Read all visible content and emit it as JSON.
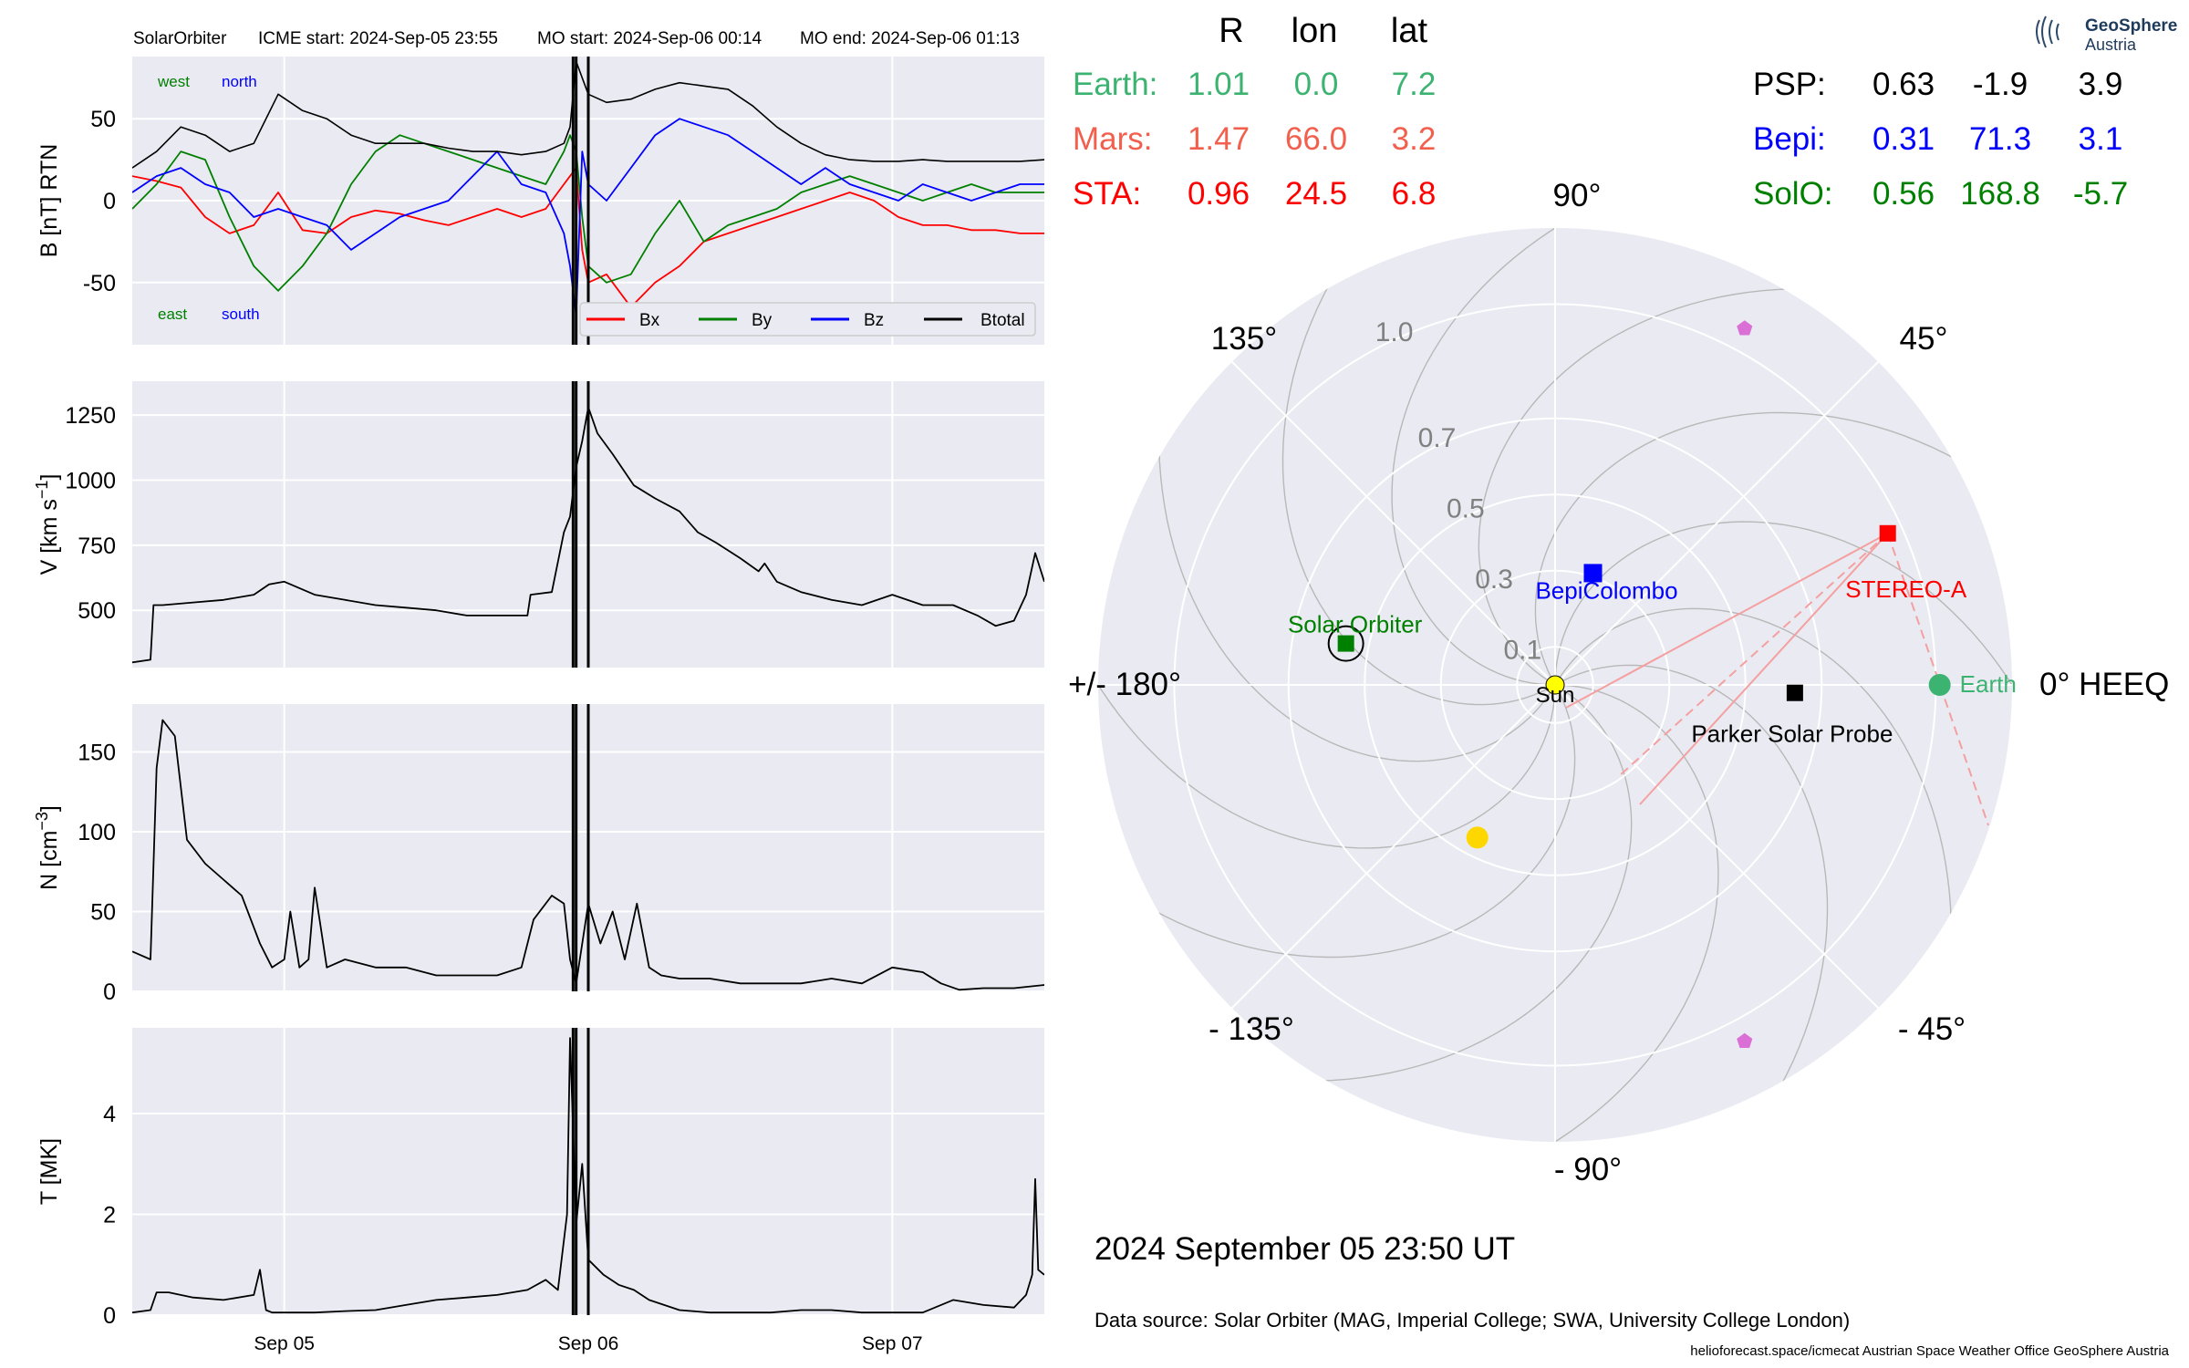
{
  "colors": {
    "panel_bg": "#eaeaf2",
    "grid": "#ffffff",
    "bx": "#ff0000",
    "by": "#008000",
    "bz": "#0000ff",
    "btotal": "#000000",
    "earth": "#3cb371",
    "mars": "#f25f4c",
    "stereo": "#ff0000",
    "bepi": "#0000ff",
    "solo": "#008000",
    "sun": "#ffff00",
    "planet_yellow": "#ffd700",
    "pentagon": "#da70d6"
  },
  "header": {
    "spacecraft": "SolarOrbiter",
    "icme_start": "ICME start: 2024-Sep-05 23:55",
    "mo_start": "MO start: 2024-Sep-06 00:14",
    "mo_end": "MO end: 2024-Sep-06 01:13"
  },
  "position_table": {
    "columns": [
      "R",
      "lon",
      "lat"
    ],
    "left_rows": [
      {
        "name": "Earth:",
        "r": "1.01",
        "lon": "0.0",
        "lat": "7.2",
        "color": "#3cb371"
      },
      {
        "name": "Mars:",
        "r": "1.47",
        "lon": "66.0",
        "lat": "3.2",
        "color": "#f25f4c"
      },
      {
        "name": "STA:",
        "r": "0.96",
        "lon": "24.5",
        "lat": "6.8",
        "color": "#ff0000"
      }
    ],
    "right_rows": [
      {
        "name": "PSP:",
        "r": "0.63",
        "lon": "-1.9",
        "lat": "3.9",
        "color": "#000000"
      },
      {
        "name": "Bepi:",
        "r": "0.31",
        "lon": "71.3",
        "lat": "3.1",
        "color": "#0000ff"
      },
      {
        "name": "SolO:",
        "r": "0.56",
        "lon": "168.8",
        "lat": "-5.7",
        "color": "#008000"
      }
    ]
  },
  "logo": {
    "line1": "GeoSphere",
    "line2": "Austria"
  },
  "timestamp": "2024 September 05  23:50 UT",
  "data_source": "Data source: Solar Orbiter (MAG, Imperial College; SWA, University College London)",
  "credits": "helioforecast.space/icmecat   Austrian Space Weather Office   GeoSphere Austria",
  "chart_data": [
    {
      "type": "line",
      "id": "magnetic-field",
      "ylabel": "B [nT] RTN",
      "ylim": [
        -88,
        88
      ],
      "yticks": [
        -50,
        0,
        50
      ],
      "xlim": [
        0,
        3
      ],
      "x_ticks": [
        {
          "x": 0.5,
          "label": "Sep 05"
        },
        {
          "x": 1.5,
          "label": "Sep 06"
        },
        {
          "x": 2.5,
          "label": "Sep 07"
        }
      ],
      "event_lines": [
        1.45,
        1.46,
        1.5
      ],
      "annotations": {
        "top_left": "west",
        "top_right": "north",
        "bottom_left": "east",
        "bottom_right": "south"
      },
      "legend_placement": "lower-right",
      "x": [
        0.0,
        0.08,
        0.16,
        0.24,
        0.32,
        0.4,
        0.48,
        0.56,
        0.64,
        0.72,
        0.8,
        0.88,
        0.96,
        1.04,
        1.12,
        1.2,
        1.28,
        1.36,
        1.42,
        1.44,
        1.46,
        1.48,
        1.5,
        1.56,
        1.64,
        1.72,
        1.8,
        1.88,
        1.96,
        2.04,
        2.12,
        2.2,
        2.28,
        2.36,
        2.44,
        2.52,
        2.6,
        2.68,
        2.76,
        2.84,
        2.92,
        3.0
      ],
      "series": [
        {
          "name": "Bx",
          "values": [
            15,
            12,
            8,
            -10,
            -20,
            -15,
            5,
            -18,
            -20,
            -10,
            -6,
            -8,
            -12,
            -15,
            -10,
            -5,
            -10,
            -5,
            10,
            15,
            20,
            -30,
            -50,
            -45,
            -65,
            -50,
            -40,
            -25,
            -20,
            -15,
            -10,
            -5,
            0,
            5,
            0,
            -10,
            -15,
            -15,
            -18,
            -18,
            -20,
            -20
          ]
        },
        {
          "name": "By",
          "values": [
            -5,
            10,
            30,
            25,
            -10,
            -40,
            -55,
            -40,
            -20,
            10,
            30,
            40,
            35,
            30,
            25,
            20,
            15,
            10,
            30,
            40,
            30,
            -10,
            -40,
            -50,
            -45,
            -20,
            0,
            -25,
            -15,
            -10,
            -5,
            5,
            10,
            15,
            10,
            5,
            0,
            5,
            10,
            5,
            5,
            5
          ]
        },
        {
          "name": "Bz",
          "values": [
            5,
            15,
            20,
            10,
            5,
            -10,
            -5,
            -10,
            -15,
            -30,
            -20,
            -10,
            -5,
            0,
            15,
            30,
            10,
            5,
            -20,
            -40,
            -70,
            30,
            10,
            0,
            20,
            40,
            50,
            45,
            40,
            30,
            20,
            10,
            20,
            10,
            5,
            0,
            10,
            5,
            0,
            5,
            10,
            10
          ]
        },
        {
          "name": "Btotal",
          "values": [
            20,
            30,
            45,
            40,
            30,
            35,
            65,
            55,
            50,
            40,
            35,
            35,
            35,
            32,
            30,
            30,
            28,
            30,
            35,
            45,
            85,
            75,
            65,
            60,
            62,
            68,
            72,
            70,
            68,
            58,
            45,
            35,
            28,
            25,
            24,
            24,
            25,
            24,
            24,
            24,
            24,
            25
          ]
        }
      ]
    },
    {
      "type": "line",
      "id": "speed",
      "ylabel": "V [km s",
      "ylabel_exp": "−1",
      "ylabel_tail": "]",
      "ylim": [
        280,
        1380
      ],
      "yticks": [
        500,
        750,
        1000,
        1250
      ],
      "xlim": [
        0,
        3
      ],
      "event_lines": [
        1.45,
        1.46,
        1.5
      ],
      "series": [
        {
          "name": "V",
          "x": [
            0.0,
            0.06,
            0.07,
            0.1,
            0.2,
            0.3,
            0.4,
            0.45,
            0.5,
            0.6,
            0.7,
            0.8,
            0.9,
            1.0,
            1.1,
            1.2,
            1.3,
            1.31,
            1.38,
            1.42,
            1.44,
            1.46,
            1.48,
            1.5,
            1.53,
            1.58,
            1.65,
            1.72,
            1.8,
            1.86,
            1.92,
            2.0,
            2.06,
            2.08,
            2.12,
            2.2,
            2.3,
            2.4,
            2.5,
            2.6,
            2.7,
            2.78,
            2.84,
            2.9,
            2.94,
            2.97,
            3.0
          ],
          "values": [
            300,
            310,
            520,
            520,
            530,
            540,
            560,
            600,
            610,
            560,
            540,
            520,
            510,
            500,
            480,
            480,
            480,
            560,
            570,
            800,
            860,
            1050,
            1150,
            1280,
            1180,
            1100,
            980,
            930,
            880,
            800,
            760,
            700,
            650,
            680,
            610,
            570,
            540,
            520,
            560,
            520,
            520,
            480,
            440,
            460,
            560,
            720,
            610
          ]
        }
      ]
    },
    {
      "type": "line",
      "id": "density",
      "ylabel": "N [cm",
      "ylabel_exp": "−3",
      "ylabel_tail": "]",
      "ylim": [
        0,
        180
      ],
      "yticks": [
        0,
        50,
        100,
        150
      ],
      "xlim": [
        0,
        3
      ],
      "event_lines": [
        1.45,
        1.46,
        1.5
      ],
      "series": [
        {
          "name": "N",
          "x": [
            0.0,
            0.06,
            0.08,
            0.1,
            0.14,
            0.18,
            0.24,
            0.3,
            0.36,
            0.42,
            0.46,
            0.5,
            0.52,
            0.55,
            0.58,
            0.6,
            0.62,
            0.64,
            0.7,
            0.8,
            0.9,
            1.0,
            1.1,
            1.2,
            1.28,
            1.32,
            1.38,
            1.42,
            1.44,
            1.46,
            1.5,
            1.54,
            1.58,
            1.62,
            1.66,
            1.7,
            1.74,
            1.8,
            1.9,
            2.0,
            2.1,
            2.2,
            2.3,
            2.4,
            2.5,
            2.6,
            2.66,
            2.72,
            2.8,
            2.9,
            3.0
          ],
          "values": [
            25,
            20,
            140,
            170,
            160,
            95,
            80,
            70,
            60,
            30,
            15,
            20,
            50,
            15,
            20,
            65,
            40,
            15,
            20,
            15,
            15,
            10,
            10,
            10,
            15,
            45,
            60,
            55,
            20,
            5,
            55,
            30,
            50,
            20,
            55,
            15,
            10,
            8,
            8,
            5,
            5,
            5,
            8,
            5,
            15,
            12,
            5,
            1,
            2,
            2,
            4
          ]
        }
      ]
    },
    {
      "type": "line",
      "id": "temperature",
      "ylabel": "T [MK]",
      "ylim": [
        0,
        5.7
      ],
      "yticks": [
        0,
        2,
        4
      ],
      "xlim": [
        0,
        3
      ],
      "event_lines": [
        1.45,
        1.46,
        1.5
      ],
      "series": [
        {
          "name": "T",
          "x": [
            0.0,
            0.06,
            0.08,
            0.12,
            0.2,
            0.3,
            0.4,
            0.42,
            0.44,
            0.46,
            0.5,
            0.6,
            0.7,
            0.8,
            0.9,
            1.0,
            1.1,
            1.2,
            1.3,
            1.36,
            1.4,
            1.43,
            1.44,
            1.46,
            1.48,
            1.5,
            1.55,
            1.6,
            1.65,
            1.7,
            1.8,
            1.9,
            2.0,
            2.1,
            2.2,
            2.3,
            2.4,
            2.5,
            2.6,
            2.7,
            2.8,
            2.9,
            2.94,
            2.96,
            2.97,
            2.98,
            3.0
          ],
          "values": [
            0.05,
            0.1,
            0.45,
            0.45,
            0.35,
            0.3,
            0.4,
            0.9,
            0.1,
            0.05,
            0.05,
            0.05,
            0.08,
            0.1,
            0.2,
            0.3,
            0.35,
            0.4,
            0.5,
            0.7,
            0.5,
            2.0,
            5.5,
            1.8,
            3.0,
            1.1,
            0.8,
            0.6,
            0.5,
            0.3,
            0.1,
            0.05,
            0.05,
            0.05,
            0.1,
            0.1,
            0.05,
            0.05,
            0.05,
            0.3,
            0.2,
            0.15,
            0.4,
            0.8,
            2.7,
            0.9,
            0.8
          ]
        }
      ]
    },
    {
      "type": "scatter",
      "id": "polar-positions",
      "coordinate_frame": "0° HEEQ",
      "rmax": 1.2,
      "rticks": [
        0.1,
        0.3,
        0.5,
        0.7,
        1.0
      ],
      "rtick_labels": [
        "0.1",
        "0.3",
        "0.5",
        "0.7",
        "1.0"
      ],
      "angle_labels": [
        {
          "deg": 0,
          "label": "0° HEEQ"
        },
        {
          "deg": 45,
          "label": "45°"
        },
        {
          "deg": 90,
          "label": "90°"
        },
        {
          "deg": 135,
          "label": "135°"
        },
        {
          "deg": 180,
          "label": "+/- 180°"
        },
        {
          "deg": -135,
          "label": "- 135°"
        },
        {
          "deg": -90,
          "label": "- 90°"
        },
        {
          "deg": -45,
          "label": "- 45°"
        }
      ],
      "objects": [
        {
          "name": "Earth",
          "label": "Earth",
          "r": 1.01,
          "lon": 0.0,
          "marker": "circle",
          "color": "#3cb371"
        },
        {
          "name": "STEREO-A",
          "label": "STEREO-A",
          "r": 0.96,
          "lon": 24.5,
          "marker": "square",
          "color": "#ff0000"
        },
        {
          "name": "BepiColombo",
          "label": "BepiColombo",
          "r": 0.31,
          "lon": 71.3,
          "marker": "square",
          "color": "#0000ff"
        },
        {
          "name": "Solar Orbiter",
          "label": "Solar Orbiter",
          "r": 0.56,
          "lon": 168.8,
          "marker": "square",
          "color": "#008000"
        },
        {
          "name": "Parker Solar Probe",
          "label": "Parker Solar Probe",
          "r": 0.63,
          "lon": -1.9,
          "marker": "square",
          "color": "#000000"
        },
        {
          "name": "Sun",
          "label": "Sun",
          "r": 0.0,
          "lon": 0.0,
          "marker": "circle",
          "color": "#ffff00"
        },
        {
          "name": "yellow planet",
          "label": "",
          "r": 0.45,
          "lon": -117.0,
          "marker": "circle",
          "color": "#ffd700"
        },
        {
          "name": "upper pentagon",
          "label": "",
          "r": 1.06,
          "lon": 62.0,
          "marker": "pentagon",
          "color": "#da70d6"
        },
        {
          "name": "lower pentagon",
          "label": "",
          "r": 1.06,
          "lon": -62.0,
          "marker": "pentagon",
          "color": "#da70d6"
        }
      ]
    }
  ]
}
